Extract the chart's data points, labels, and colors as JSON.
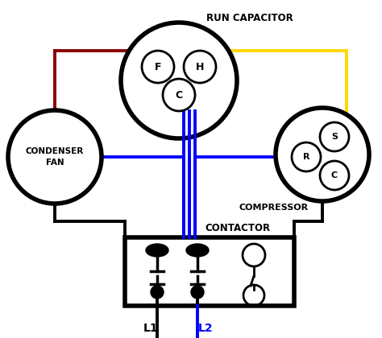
{
  "bg_color": "#ffffff",
  "run_cap_label": "RUN CAPACITOR",
  "condenser_label": "CONDENSER\nFAN",
  "compressor_label": "COMPRESSOR",
  "contactor_label": "CONTACTOR",
  "L1_label": "L1",
  "L2_label": "L2"
}
